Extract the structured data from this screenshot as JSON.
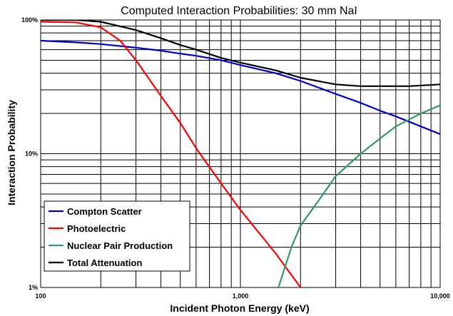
{
  "chart_data": {
    "type": "line",
    "title": "Computed Interaction Probabilities:  30 mm NaI",
    "xlabel": "Incident Photon Energy (keV)",
    "ylabel": "Interaction Probability",
    "x_scale": "log",
    "y_scale": "log",
    "xlim": [
      100,
      10000
    ],
    "ylim": [
      1,
      100
    ],
    "x_ticks": [
      {
        "value": 100,
        "label": "100"
      },
      {
        "value": 1000,
        "label": "1,000"
      },
      {
        "value": 10000,
        "label": "10,000"
      }
    ],
    "y_ticks": [
      {
        "value": 100,
        "label": "100%"
      },
      {
        "value": 10,
        "label": "10%"
      },
      {
        "value": 1,
        "label": "1%"
      }
    ],
    "grid": true,
    "legend_position": "bottom-left",
    "series": [
      {
        "name": "Compton Scatter",
        "color": "#0000cc",
        "points": [
          [
            100,
            70
          ],
          [
            150,
            68
          ],
          [
            200,
            66
          ],
          [
            300,
            62
          ],
          [
            400,
            59
          ],
          [
            500,
            56
          ],
          [
            600,
            54
          ],
          [
            800,
            50
          ],
          [
            1000,
            46
          ],
          [
            1500,
            40
          ],
          [
            2000,
            35
          ],
          [
            3000,
            28
          ],
          [
            4000,
            24
          ],
          [
            5000,
            21
          ],
          [
            6000,
            19
          ],
          [
            8000,
            16
          ],
          [
            10000,
            14
          ]
        ]
      },
      {
        "name": "Photoelectric",
        "color": "#ff0000",
        "points": [
          [
            100,
            97
          ],
          [
            150,
            96
          ],
          [
            200,
            88
          ],
          [
            250,
            70
          ],
          [
            300,
            50
          ],
          [
            400,
            27
          ],
          [
            500,
            17
          ],
          [
            600,
            11
          ],
          [
            800,
            6
          ],
          [
            1000,
            3.8
          ],
          [
            1500,
            1.8
          ],
          [
            2000,
            1
          ]
        ]
      },
      {
        "name": "Nuclear Pair Production",
        "color": "#339966",
        "points": [
          [
            1550,
            1
          ],
          [
            1800,
            2
          ],
          [
            2000,
            2.9
          ],
          [
            2500,
            4.6
          ],
          [
            3000,
            6.8
          ],
          [
            4000,
            10
          ],
          [
            5000,
            13
          ],
          [
            6000,
            16
          ],
          [
            8000,
            20
          ],
          [
            10000,
            23
          ]
        ]
      },
      {
        "name": "Total Attenuation",
        "color": "#000000",
        "points": [
          [
            100,
            100
          ],
          [
            150,
            100
          ],
          [
            200,
            97
          ],
          [
            300,
            84
          ],
          [
            400,
            73
          ],
          [
            500,
            65
          ],
          [
            600,
            60
          ],
          [
            800,
            52
          ],
          [
            1000,
            48
          ],
          [
            1500,
            42
          ],
          [
            2000,
            37
          ],
          [
            3000,
            33
          ],
          [
            4000,
            32
          ],
          [
            5000,
            32
          ],
          [
            7000,
            32
          ],
          [
            10000,
            33
          ]
        ]
      }
    ]
  }
}
